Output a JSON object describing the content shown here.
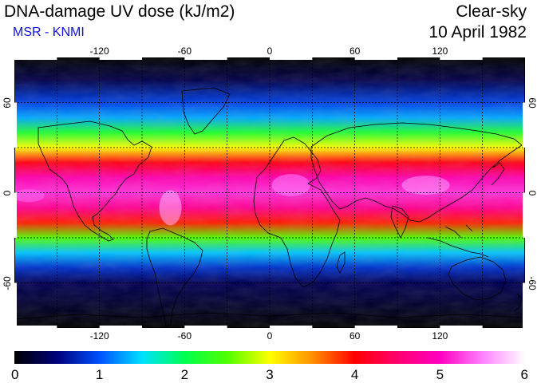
{
  "header": {
    "title": "DNA-damage UV dose (kJ/m2)",
    "subtitle": "MSR - KNMI",
    "condition": "Clear-sky",
    "date": "10 April 1982"
  },
  "map": {
    "projection": "equirectangular",
    "lon_range": [
      -180,
      180
    ],
    "lat_range": [
      -90,
      90
    ],
    "grid_lon": [
      -150,
      -120,
      -90,
      -60,
      -30,
      0,
      30,
      60,
      90,
      120,
      150
    ],
    "grid_lat": [
      -60,
      -30,
      0,
      30,
      60
    ],
    "lon_tick_labels": [
      "-120",
      "-60",
      "0",
      "60",
      "120"
    ],
    "lon_tick_values": [
      -120,
      -60,
      0,
      60,
      120
    ],
    "lat_tick_labels": [
      "-60",
      "0",
      "60"
    ],
    "lat_tick_values": [
      -60,
      0,
      60
    ],
    "gridlines": "dashed",
    "field_description_bands": [
      {
        "lat": 90,
        "dose": 0.0
      },
      {
        "lat": 75,
        "dose": 0.3
      },
      {
        "lat": 60,
        "dose": 0.9
      },
      {
        "lat": 50,
        "dose": 1.3
      },
      {
        "lat": 40,
        "dose": 2.2
      },
      {
        "lat": 30,
        "dose": 3.0
      },
      {
        "lat": 20,
        "dose": 4.1
      },
      {
        "lat": 10,
        "dose": 4.9
      },
      {
        "lat": 0,
        "dose": 5.2
      },
      {
        "lat": -10,
        "dose": 4.7
      },
      {
        "lat": -20,
        "dose": 3.9
      },
      {
        "lat": -30,
        "dose": 2.5
      },
      {
        "lat": -40,
        "dose": 1.4
      },
      {
        "lat": -50,
        "dose": 0.8
      },
      {
        "lat": -60,
        "dose": 0.35
      },
      {
        "lat": -90,
        "dose": 0.0
      }
    ]
  },
  "colorbar": {
    "min": 0,
    "max": 6,
    "tick_labels": [
      "0",
      "1",
      "2",
      "3",
      "4",
      "5",
      "6"
    ],
    "tick_values": [
      0,
      1,
      2,
      3,
      4,
      5,
      6
    ],
    "colors": [
      "#000000",
      "#00007a",
      "#0050ff",
      "#00e0ff",
      "#00ff50",
      "#50ff00",
      "#ffff00",
      "#ff9000",
      "#ff0000",
      "#ff0070",
      "#ff00c0",
      "#ff80ff",
      "#ffffff"
    ]
  }
}
